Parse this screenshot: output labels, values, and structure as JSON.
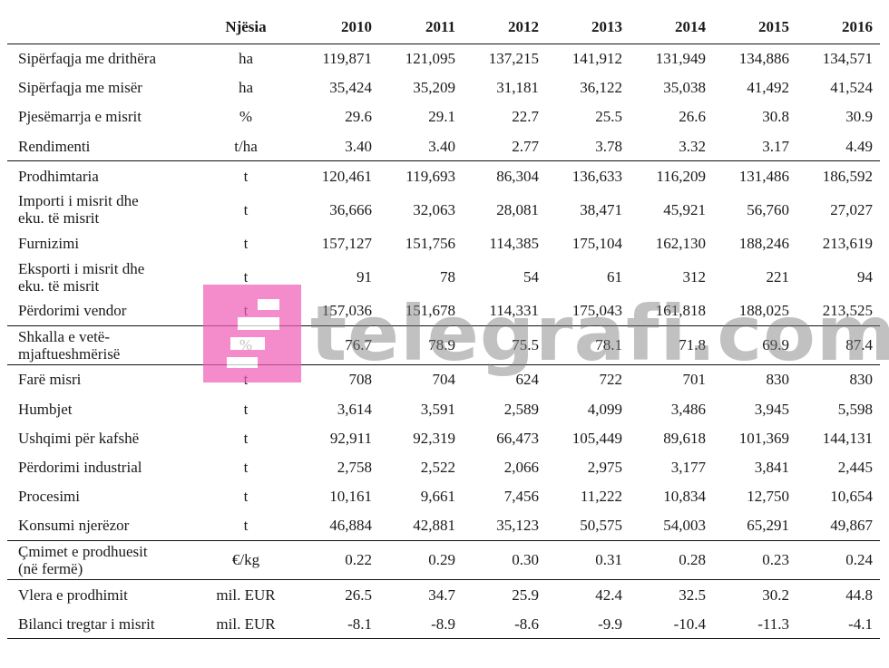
{
  "columns": {
    "label": "",
    "unit": "Njësia",
    "years": [
      "2010",
      "2011",
      "2012",
      "2013",
      "2014",
      "2015",
      "2016"
    ]
  },
  "rows": [
    {
      "label": [
        "Sipërfaqja me drithëra"
      ],
      "unit": "ha",
      "values": [
        "119,871",
        "121,095",
        "137,215",
        "141,912",
        "131,949",
        "134,886",
        "134,571"
      ]
    },
    {
      "label": [
        "Sipërfaqja me misër"
      ],
      "unit": "ha",
      "values": [
        "35,424",
        "35,209",
        "31,181",
        "36,122",
        "35,038",
        "41,492",
        "41,524"
      ]
    },
    {
      "label": [
        "Pjesëmarrja e misrit"
      ],
      "unit": "%",
      "values": [
        "29.6",
        "29.1",
        "22.7",
        "25.5",
        "26.6",
        "30.8",
        "30.9"
      ]
    },
    {
      "label": [
        "Rendimenti"
      ],
      "unit": "t/ha",
      "values": [
        "3.40",
        "3.40",
        "2.77",
        "3.78",
        "3.32",
        "3.17",
        "4.49"
      ]
    },
    {
      "label": [
        "Prodhimtaria"
      ],
      "unit": "t",
      "values": [
        "120,461",
        "119,693",
        "86,304",
        "136,633",
        "116,209",
        "131,486",
        "186,592"
      ]
    },
    {
      "label": [
        "Importi i misrit dhe",
        "eku. të misrit"
      ],
      "unit": "t",
      "values": [
        "36,666",
        "32,063",
        "28,081",
        "38,471",
        "45,921",
        "56,760",
        "27,027"
      ]
    },
    {
      "label": [
        "Furnizimi"
      ],
      "unit": "t",
      "values": [
        "157,127",
        "151,756",
        "114,385",
        "175,104",
        "162,130",
        "188,246",
        "213,619"
      ]
    },
    {
      "label": [
        "Eksporti i misrit dhe",
        "eku. të misrit"
      ],
      "unit": "t",
      "values": [
        "91",
        "78",
        "54",
        "61",
        "312",
        "221",
        "94"
      ]
    },
    {
      "label": [
        "Përdorimi vendor"
      ],
      "unit": "t",
      "values": [
        "157,036",
        "151,678",
        "114,331",
        "175,043",
        "161,818",
        "188,025",
        "213,525"
      ]
    },
    {
      "label": [
        "Shkalla e vetë-",
        "mjaftueshmërisë"
      ],
      "unit": "%",
      "values": [
        "76.7",
        "78.9",
        "75.5",
        "78.1",
        "71.8",
        "69.9",
        "87.4"
      ]
    },
    {
      "label": [
        "Farë misri"
      ],
      "unit": "t",
      "values": [
        "708",
        "704",
        "624",
        "722",
        "701",
        "830",
        "830"
      ]
    },
    {
      "label": [
        "Humbjet"
      ],
      "unit": "t",
      "values": [
        "3,614",
        "3,591",
        "2,589",
        "4,099",
        "3,486",
        "3,945",
        "5,598"
      ]
    },
    {
      "label": [
        "Ushqimi për kafshë"
      ],
      "unit": "t",
      "values": [
        "92,911",
        "92,319",
        "66,473",
        "105,449",
        "89,618",
        "101,369",
        "144,131"
      ]
    },
    {
      "label": [
        "Përdorimi industrial"
      ],
      "unit": "t",
      "values": [
        "2,758",
        "2,522",
        "2,066",
        "2,975",
        "3,177",
        "3,841",
        "2,445"
      ]
    },
    {
      "label": [
        "Procesimi"
      ],
      "unit": "t",
      "values": [
        "10,161",
        "9,661",
        "7,456",
        "11,222",
        "10,834",
        "12,750",
        "10,654"
      ]
    },
    {
      "label": [
        "Konsumi njerëzor"
      ],
      "unit": "t",
      "values": [
        "46,884",
        "42,881",
        "35,123",
        "50,575",
        "54,003",
        "65,291",
        "49,867"
      ]
    },
    {
      "label": [
        "Çmimet e prodhuesit",
        "(në fermë)"
      ],
      "unit": "€/kg",
      "values": [
        "0.22",
        "0.29",
        "0.30",
        "0.31",
        "0.28",
        "0.23",
        "0.24"
      ]
    },
    {
      "label": [
        "Vlera e prodhimit"
      ],
      "unit": "mil. EUR",
      "values": [
        "26.5",
        "34.7",
        "25.9",
        "42.4",
        "32.5",
        "30.2",
        "44.8"
      ]
    },
    {
      "label": [
        "Bilanci tregtar i misrit"
      ],
      "unit": "mil. EUR",
      "values": [
        "-8.1",
        "-8.9",
        "-8.6",
        "-9.9",
        "-10.4",
        "-11.3",
        "-4.1"
      ]
    }
  ],
  "watermark": {
    "text": "telegrafi.com",
    "logo_color": "#f05fb8",
    "logo_icon": "telegrafi-logo-icon"
  }
}
